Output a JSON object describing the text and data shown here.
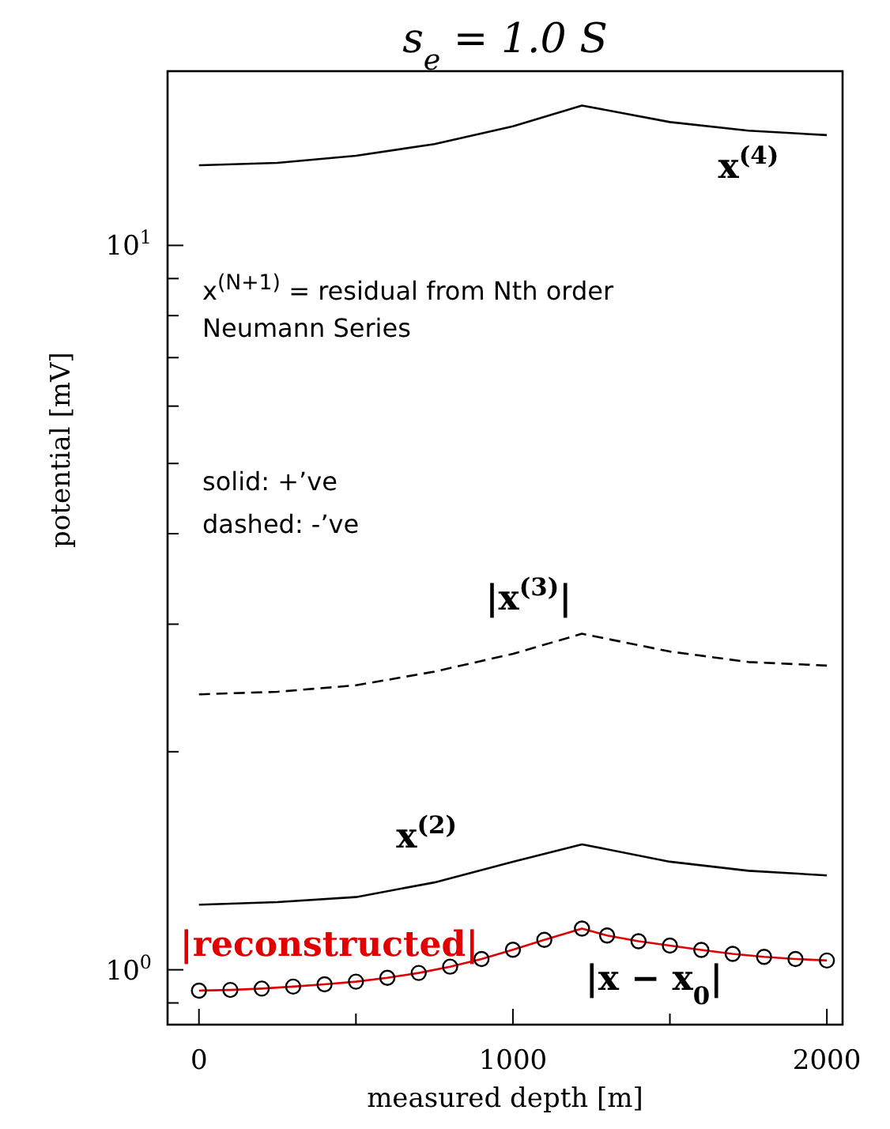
{
  "chart_data": {
    "type": "line",
    "title": "s$_{e}$ = 1.0 S",
    "xlabel": "measured depth [m]",
    "ylabel": "potential [mV]",
    "log": "y",
    "grid": false,
    "xlim": [
      -100,
      2050
    ],
    "xticks": [
      0,
      {
        "value": 500,
        "label": null
      },
      1000,
      {
        "value": 1500,
        "label": null
      },
      2000
    ],
    "ylim": [
      0.84,
      17.4
    ],
    "yticks": [
      {
        "value": 0.9,
        "label": null
      },
      {
        "value": 1,
        "label": "10$^{0}$"
      },
      {
        "value": 2,
        "label": null
      },
      {
        "value": 3,
        "label": null
      },
      {
        "value": 4,
        "label": null
      },
      {
        "value": 5,
        "label": null
      },
      {
        "value": 6,
        "label": null
      },
      {
        "value": 7,
        "label": null
      },
      {
        "value": 8,
        "label": null
      },
      {
        "value": 9,
        "label": null
      },
      {
        "value": 10,
        "label": "10$^{1}$"
      }
    ],
    "annotations": [
      "x$^{(N+1)}$ = residual from Nth order Neumann Series",
      "solid: +’ve",
      "dashed: -’ve"
    ],
    "series": [
      {
        "name": "x$^{(4)}$",
        "line_style": "solid",
        "marker": "none",
        "color": "#000000",
        "x": [
          0,
          250,
          500,
          750,
          1000,
          1220,
          1500,
          1750,
          2000
        ],
        "values": [
          12.9,
          13.0,
          13.3,
          13.8,
          14.6,
          15.6,
          14.8,
          14.4,
          14.2
        ]
      },
      {
        "name": "|x$^{(3)}$|",
        "line_style": "dashed",
        "marker": "none",
        "color": "#000000",
        "x": [
          0,
          250,
          500,
          750,
          1000,
          1220,
          1500,
          1750,
          2000
        ],
        "values": [
          2.4,
          2.42,
          2.47,
          2.58,
          2.73,
          2.91,
          2.75,
          2.66,
          2.63
        ]
      },
      {
        "name": "x$^{(2)}$",
        "line_style": "solid",
        "marker": "none",
        "color": "#000000",
        "x": [
          0,
          250,
          500,
          750,
          1000,
          1220,
          1500,
          1750,
          2000
        ],
        "values": [
          1.23,
          1.24,
          1.26,
          1.32,
          1.41,
          1.49,
          1.41,
          1.37,
          1.35
        ]
      },
      {
        "name": "|x − x$_{0}$|",
        "type": "scatter",
        "marker": "circle",
        "color": "#000000",
        "x": [
          0,
          100,
          200,
          300,
          400,
          500,
          600,
          700,
          800,
          900,
          1000,
          1100,
          1220,
          1300,
          1400,
          1500,
          1600,
          1700,
          1800,
          1900,
          2000
        ],
        "values": [
          0.936,
          0.938,
          0.942,
          0.948,
          0.955,
          0.963,
          0.975,
          0.99,
          1.01,
          1.035,
          1.066,
          1.1,
          1.14,
          1.115,
          1.095,
          1.08,
          1.065,
          1.052,
          1.042,
          1.035,
          1.03
        ]
      },
      {
        "name": "|reconstructed|",
        "line_style": "solid",
        "marker": "none",
        "color": "#e00000",
        "x": [
          0,
          100,
          200,
          300,
          400,
          500,
          600,
          700,
          800,
          900,
          1000,
          1100,
          1220,
          1300,
          1400,
          1500,
          1600,
          1700,
          1800,
          1900,
          2000
        ],
        "values": [
          0.936,
          0.938,
          0.942,
          0.948,
          0.955,
          0.963,
          0.975,
          0.99,
          1.01,
          1.035,
          1.066,
          1.1,
          1.14,
          1.115,
          1.095,
          1.08,
          1.065,
          1.052,
          1.042,
          1.035,
          1.03
        ]
      }
    ]
  }
}
